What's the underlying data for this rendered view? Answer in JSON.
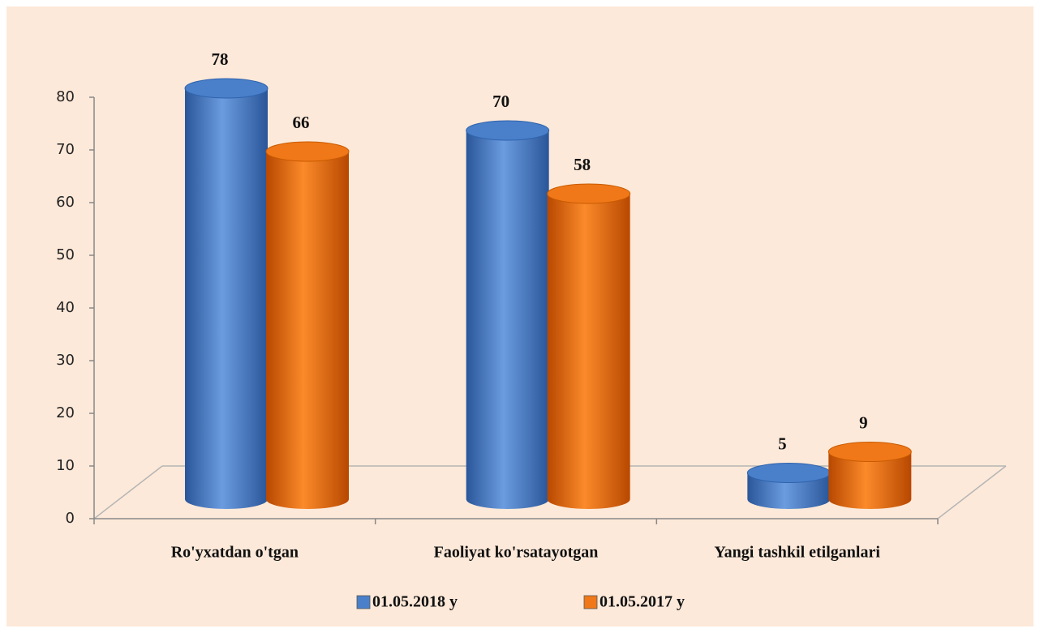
{
  "chart_data": {
    "type": "bar",
    "categories": [
      "Ro'yxatdan o'tgan",
      "Faoliyat ko'rsatayotgan",
      "Yangi tashkil etilganlari"
    ],
    "series": [
      {
        "name": "01.05.2018 y",
        "color": "#4a7fc9",
        "values": [
          78,
          70,
          5
        ]
      },
      {
        "name": "01.05.2017 y",
        "color": "#f07818",
        "values": [
          66,
          58,
          9
        ]
      }
    ],
    "ylim": [
      0,
      80
    ],
    "yticks": [
      0,
      10,
      20,
      30,
      40,
      50,
      60,
      70,
      80
    ],
    "grid": false,
    "legend": "bottom"
  }
}
